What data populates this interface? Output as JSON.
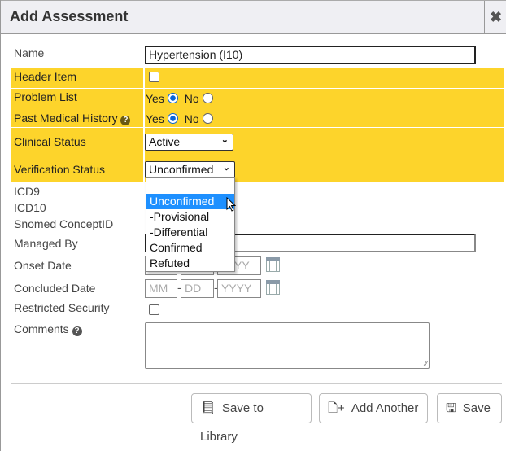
{
  "dialog": {
    "title": "Add Assessment",
    "close_icon": "close-icon"
  },
  "form": {
    "name_label": "Name",
    "name_value": "Hypertension (I10)",
    "header_item_label": "Header Item",
    "header_item_checked": false,
    "problem_list_label": "Problem List",
    "problem_list_yes": "Yes",
    "problem_list_no": "No",
    "problem_list_value": "Yes",
    "pmh_label": "Past Medical History",
    "pmh_yes": "Yes",
    "pmh_no": "No",
    "pmh_value": "Yes",
    "clinical_status_label": "Clinical Status",
    "clinical_status_value": "Active",
    "verification_status_label": "Verification Status",
    "verification_status_value": "Unconfirmed",
    "verification_options": [
      "",
      "Unconfirmed",
      "-Provisional",
      "-Differential",
      "Confirmed",
      "Refuted"
    ],
    "verification_highlighted": "Unconfirmed",
    "icd9_label": "ICD9",
    "icd10_label": "ICD10",
    "snomed_label": "Snomed ConceptID",
    "managed_by_label": "Managed By",
    "onset_date_label": "Onset Date",
    "concluded_date_label": "Concluded Date",
    "date_placeholders": {
      "mm": "MM",
      "dd": "DD",
      "yyyy": "YYYY"
    },
    "onset_visible_fragment": "YY",
    "restricted_security_label": "Restricted Security",
    "restricted_security_checked": false,
    "comments_label": "Comments"
  },
  "buttons": {
    "save_to_library": "Save to Library",
    "add_another": "Add Another",
    "save": "Save"
  },
  "colors": {
    "highlight_row": "#fdd42b",
    "selected_option": "#1e90ff"
  }
}
